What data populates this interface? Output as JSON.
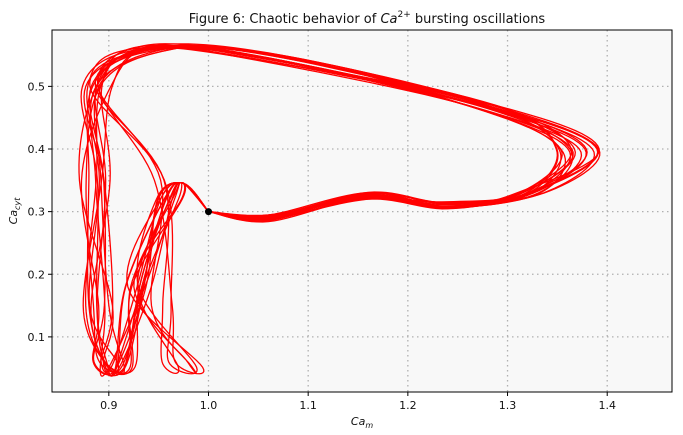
{
  "chart_data": {
    "type": "line",
    "title_prefix": "Figure 6: Chaotic behavior of ",
    "title_math": "Ca",
    "title_math_sup": "2+",
    "title_suffix": " bursting oscillations",
    "xlabel": "Ca",
    "xlabel_sub": "m",
    "ylabel": "Ca",
    "ylabel_sub": "cyt",
    "xlim": [
      0.843,
      1.465
    ],
    "ylim": [
      0.012,
      0.59
    ],
    "x_ticks": [
      0.9,
      1.0,
      1.1,
      1.2,
      1.3,
      1.4
    ],
    "x_tick_labels": [
      "0.9",
      "1.0",
      "1.1",
      "1.2",
      "1.3",
      "1.4"
    ],
    "y_ticks": [
      0.1,
      0.2,
      0.3,
      0.4,
      0.5
    ],
    "y_tick_labels": [
      "0.1",
      "0.2",
      "0.3",
      "0.4",
      "0.5"
    ],
    "grid": true,
    "grid_style": "dotted",
    "background_color": "#f8f8f8",
    "line_color": "#ff0000",
    "marker_color": "#000000",
    "start_point": {
      "x": 1.0,
      "y": 0.3
    },
    "loop_count": 18,
    "trajectory_keypoints": [
      {
        "x": 1.0,
        "y": 0.3
      },
      {
        "x": 1.06,
        "y": 0.29
      },
      {
        "x": 1.16,
        "y": 0.325
      },
      {
        "x": 1.24,
        "y": 0.31
      },
      {
        "x": 1.32,
        "y": 0.33
      },
      {
        "x": 1.36,
        "y": 0.4
      },
      {
        "x": 1.27,
        "y": 0.47
      },
      {
        "x": 1.05,
        "y": 0.55
      },
      {
        "x": 0.94,
        "y": 0.56
      },
      {
        "x": 0.89,
        "y": 0.5
      },
      {
        "x": 0.885,
        "y": 0.35
      },
      {
        "x": 0.89,
        "y": 0.15
      },
      {
        "x": 0.9,
        "y": 0.06
      },
      {
        "x": 0.915,
        "y": 0.05
      },
      {
        "x": 0.93,
        "y": 0.18
      },
      {
        "x": 0.96,
        "y": 0.32
      },
      {
        "x": 0.975,
        "y": 0.345
      },
      {
        "x": 1.0,
        "y": 0.3
      }
    ]
  }
}
